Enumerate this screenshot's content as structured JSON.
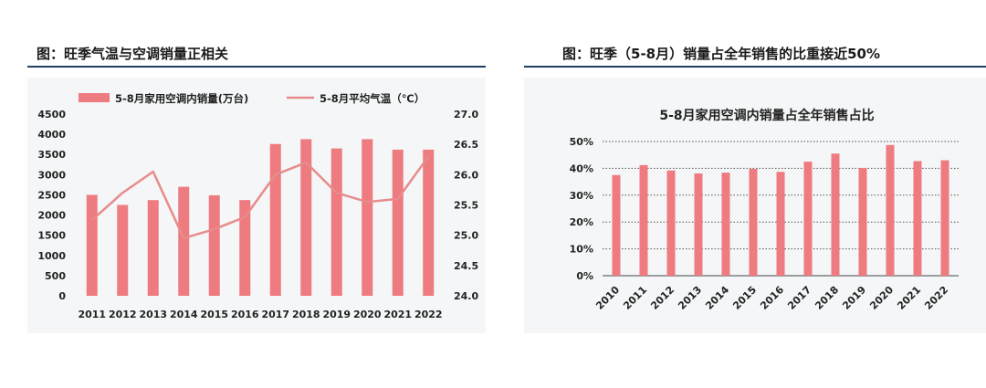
{
  "left_panel": {
    "title": "图：旺季气温与空调销量正相关"
  },
  "right_panel": {
    "title": "图：旺季（5-8月）销量占全年销售的比重接近50%"
  },
  "chart_data": [
    {
      "type": "bar+line",
      "title": "",
      "categories": [
        "2011",
        "2012",
        "2013",
        "2014",
        "2015",
        "2016",
        "2017",
        "2018",
        "2019",
        "2020",
        "2021",
        "2022"
      ],
      "series": [
        {
          "name": "5-8月家用空调内销量(万台)",
          "type": "bar",
          "axis": "left",
          "values": [
            2500,
            2250,
            2370,
            2700,
            2490,
            2370,
            3760,
            3880,
            3650,
            3880,
            3620,
            3620
          ]
        },
        {
          "name": "5-8月平均气温（℃）",
          "type": "line",
          "axis": "right",
          "values": [
            25.25,
            25.7,
            26.05,
            24.95,
            25.1,
            25.3,
            26.0,
            26.2,
            25.7,
            25.55,
            25.6,
            26.3
          ]
        }
      ],
      "y_left": {
        "ylim": [
          0,
          4500
        ],
        "ticks": [
          "0",
          "500",
          "1000",
          "1500",
          "2000",
          "2500",
          "3000",
          "3500",
          "4000",
          "4500"
        ]
      },
      "y_right": {
        "ylim": [
          24.0,
          27.0
        ],
        "ticks": [
          "24.0",
          "24.5",
          "25.0",
          "25.5",
          "26.0",
          "26.5",
          "27.0"
        ]
      },
      "legend": "top",
      "grid": false,
      "colors": {
        "bar": "#ee7b7f",
        "line": "#e88b8b"
      }
    },
    {
      "type": "bar",
      "title": "5-8月家用空调内销量占全年销售占比",
      "categories": [
        "2010",
        "2011",
        "2012",
        "2013",
        "2014",
        "2015",
        "2016",
        "2017",
        "2018",
        "2019",
        "2020",
        "2021",
        "2022"
      ],
      "values": [
        0.375,
        0.412,
        0.392,
        0.381,
        0.384,
        0.398,
        0.387,
        0.425,
        0.455,
        0.401,
        0.487,
        0.427,
        0.43
      ],
      "ylim": [
        0,
        0.5
      ],
      "ticks": [
        "0%",
        "10%",
        "20%",
        "30%",
        "40%",
        "50%"
      ],
      "grid": true,
      "colors": {
        "bar": "#ee7b7f",
        "grid": "#555555"
      }
    }
  ]
}
